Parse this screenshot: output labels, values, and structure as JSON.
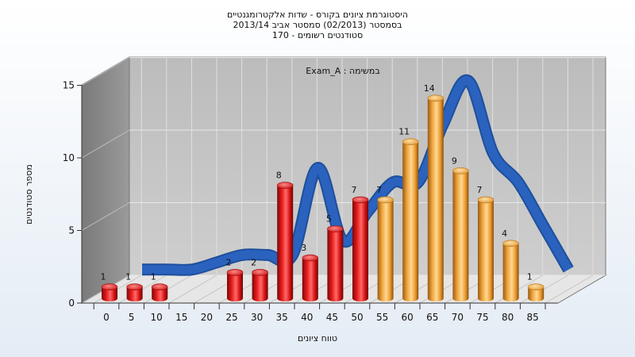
{
  "chart_data": {
    "type": "bar",
    "title_lines": [
      "היסטוגרמת ציונים בקורס - שדות אלקטרומגנטיים",
      "בסמסטר  (02/2013)  סמסטר אביב 2013/14",
      "סטודנטים רשומים - 170"
    ],
    "inner_label": "Exam_A : במשימה",
    "xlabel": "טווח ציונים",
    "ylabel": "מספר סטודנטים",
    "x_ticks": [
      "0",
      "5",
      "10",
      "15",
      "20",
      "25",
      "30",
      "35",
      "40",
      "45",
      "50",
      "55",
      "60",
      "65",
      "70",
      "75",
      "80",
      "85"
    ],
    "y_ticks": [
      "0",
      "5",
      "10",
      "15"
    ],
    "ylim": [
      0,
      15
    ],
    "grid": true,
    "legend": "none",
    "bars": [
      {
        "x": "0",
        "value": 1,
        "color": "red"
      },
      {
        "x": "5",
        "value": 1,
        "color": "red"
      },
      {
        "x": "10",
        "value": 1,
        "color": "red"
      },
      {
        "x": "15",
        "value": 0,
        "color": "red"
      },
      {
        "x": "20",
        "value": 0,
        "color": "red"
      },
      {
        "x": "25",
        "value": 2,
        "color": "red"
      },
      {
        "x": "30",
        "value": 2,
        "color": "red"
      },
      {
        "x": "35",
        "value": 8,
        "color": "red"
      },
      {
        "x": "40",
        "value": 3,
        "color": "red"
      },
      {
        "x": "45",
        "value": 5,
        "color": "red"
      },
      {
        "x": "50",
        "value": 7,
        "color": "red"
      },
      {
        "x": "55",
        "value": 7,
        "color": "orange"
      },
      {
        "x": "60",
        "value": 11,
        "color": "orange"
      },
      {
        "x": "65",
        "value": 14,
        "color": "orange"
      },
      {
        "x": "70",
        "value": 9,
        "color": "orange"
      },
      {
        "x": "75",
        "value": 7,
        "color": "orange"
      },
      {
        "x": "80",
        "value": 4,
        "color": "orange"
      },
      {
        "x": "85",
        "value": 1,
        "color": "orange"
      }
    ],
    "trend_line": [
      1,
      1,
      1,
      1.5,
      2,
      2,
      2,
      8,
      3,
      5,
      7,
      7,
      11,
      14,
      9,
      7,
      4,
      1
    ],
    "colors": {
      "red": "#e01515",
      "orange": "#f0a537",
      "trend": "#2a62be",
      "back_wall": "#c4c4c4",
      "side_wall": "#8c8c8c",
      "floor": "#e6e6e6"
    }
  }
}
